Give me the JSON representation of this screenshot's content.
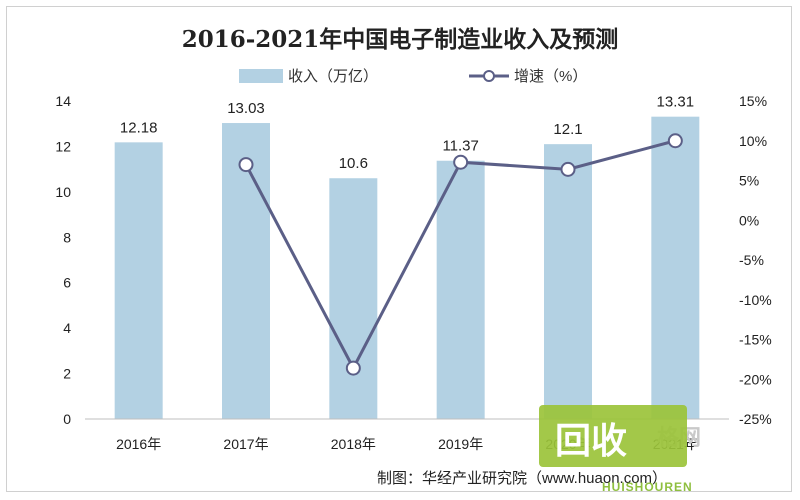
{
  "chart_data": {
    "type": "bar",
    "title": "2016-2021年中国电子制造业收入及预测",
    "categories": [
      "2016年",
      "2017年",
      "2018年",
      "2019年",
      "2020年",
      "2021年"
    ],
    "series": [
      {
        "name": "收入（万亿）",
        "type": "bar",
        "axis": "left",
        "values": [
          12.18,
          13.03,
          10.6,
          11.37,
          12.1,
          13.31
        ],
        "labels": [
          "12.18",
          "13.03",
          "10.6",
          "11.37",
          "12.1",
          "13.31"
        ]
      },
      {
        "name": "增速（%）",
        "type": "line",
        "axis": "right",
        "values": [
          null,
          7.0,
          -18.6,
          7.3,
          6.4,
          10.0
        ]
      }
    ],
    "ylim": [
      0,
      14
    ],
    "yticks": [
      0,
      2,
      4,
      6,
      8,
      10,
      12,
      14
    ],
    "ytick_labels": [
      "0",
      "2",
      "4",
      "6",
      "8",
      "10",
      "12",
      "14"
    ],
    "y2lim": [
      -25,
      15
    ],
    "y2ticks": [
      15,
      10,
      5,
      0,
      -5,
      -10,
      -15,
      -20,
      -25
    ],
    "y2tick_labels": [
      "15%",
      "10%",
      "5%",
      "0%",
      "-5%",
      "-10%",
      "-15%",
      "-20%",
      "-25%"
    ],
    "legend_position": "top",
    "grid": false,
    "colors": {
      "bar": "#b3d1e3",
      "line": "#5b5f87",
      "marker_fill": "#ffffff"
    }
  },
  "source": "制图：华经产业研究院（www.huaon.com）",
  "watermark": {
    "big": "回收",
    "small": "HUISHOUREN",
    "faint": "格网"
  }
}
